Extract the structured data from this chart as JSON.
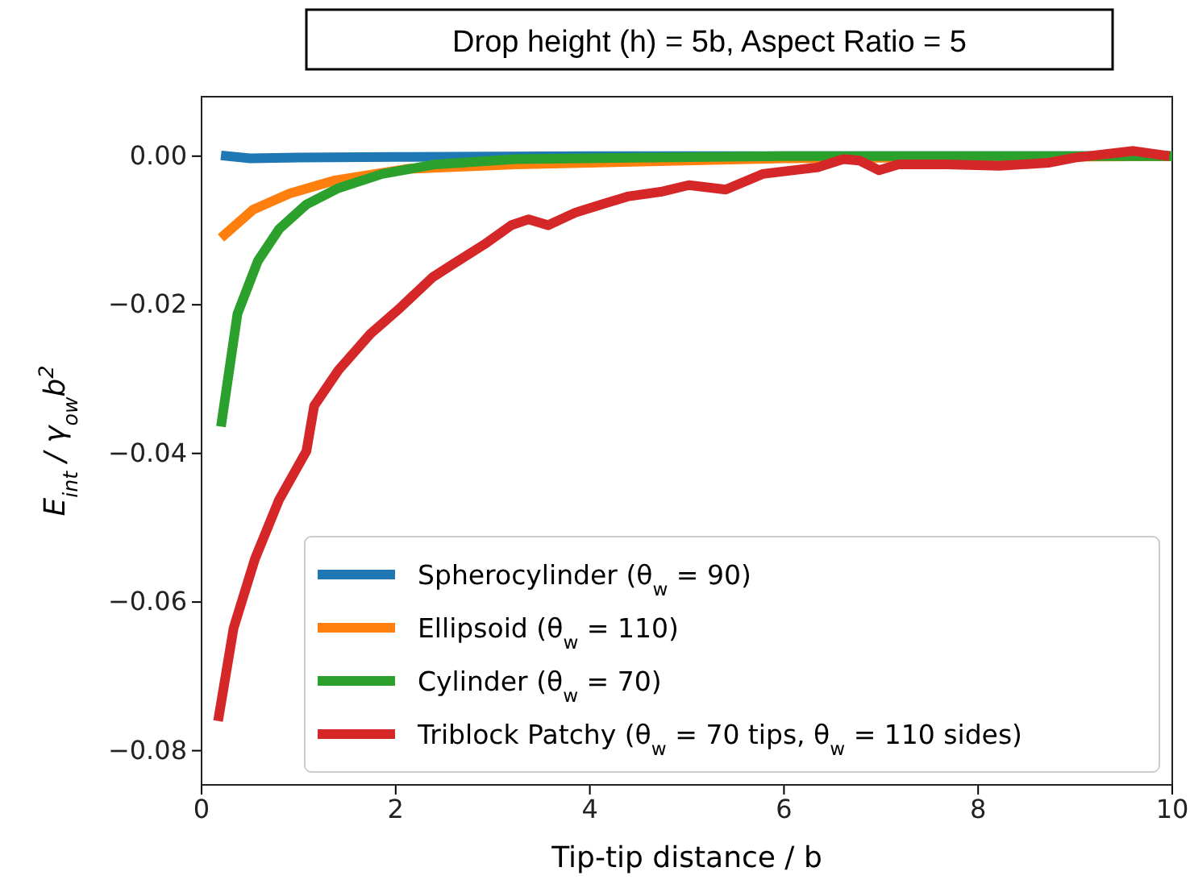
{
  "chart_data": {
    "type": "line",
    "title": "Drop height (h) = 5b, Aspect Ratio = 5",
    "xlabel": "Tip-tip distance / b",
    "ylabel": "E$_{int}$ / γ$_{ow}$b$^{2}$",
    "xlim": [
      0,
      10
    ],
    "ylim": [
      -0.0846,
      0.008
    ],
    "xticks": [
      0,
      2,
      4,
      6,
      8,
      10
    ],
    "yticks": [
      {
        "value": -0.08,
        "label": "−0.08"
      },
      {
        "value": -0.06,
        "label": "−0.06"
      },
      {
        "value": -0.04,
        "label": "−0.04"
      },
      {
        "value": -0.02,
        "label": "−0.02"
      },
      {
        "value": 0,
        "label": "0.00"
      }
    ],
    "grid": false,
    "legend": "bottom right",
    "line_style": "solid",
    "marker": "none",
    "series": [
      {
        "name": "Spherocylinder (θ$_{w}$ = 90)",
        "color": "#1f77b4",
        "x": [
          0.2,
          0.5,
          1,
          2,
          4,
          6,
          8,
          10
        ],
        "values": [
          0.0001,
          -0.0003,
          -0.0002,
          -0.0001,
          0,
          0,
          0,
          0
        ]
      },
      {
        "name": "Ellipsoid (θ$_{w}$ = 110)",
        "color": "#ff7f0e",
        "x": [
          0.2,
          0.53,
          0.91,
          1.36,
          2.13,
          3.24,
          6,
          10
        ],
        "values": [
          -0.011,
          -0.0072,
          -0.005,
          -0.0033,
          -0.0017,
          -0.0011,
          -0.0003,
          0
        ]
      },
      {
        "name": "Cylinder (θ$_{w}$ = 70)",
        "color": "#2ca02c",
        "x": [
          0.2,
          0.37,
          0.58,
          0.8,
          1.08,
          1.41,
          1.86,
          2.41,
          3.24,
          6,
          10
        ],
        "values": [
          -0.0364,
          -0.0212,
          -0.0141,
          -0.0098,
          -0.0065,
          -0.0043,
          -0.0024,
          -0.0011,
          -0.0004,
          0,
          0
        ]
      },
      {
        "name": "Triblock Patchy (θ$_{w}$ = 70 tips, θ$_{w}$ = 110 sides)",
        "color": "#d62728",
        "x": [
          0.17,
          0.33,
          0.55,
          0.8,
          1.08,
          1.16,
          1.41,
          1.74,
          2.03,
          2.38,
          2.57,
          2.91,
          3.19,
          3.37,
          3.57,
          3.85,
          4.12,
          4.4,
          4.73,
          5.02,
          5.4,
          5.78,
          6.35,
          6.61,
          6.78,
          6.98,
          7.18,
          7.67,
          8.22,
          8.72,
          9.0,
          9.6,
          9.97
        ],
        "values": [
          -0.076,
          -0.0635,
          -0.0542,
          -0.0462,
          -0.0397,
          -0.0336,
          -0.0288,
          -0.0239,
          -0.0206,
          -0.0163,
          -0.0147,
          -0.0119,
          -0.0093,
          -0.0085,
          -0.0093,
          -0.0076,
          -0.0065,
          -0.0054,
          -0.0048,
          -0.0039,
          -0.0045,
          -0.0024,
          -0.0015,
          -0.0004,
          -0.0006,
          -0.0019,
          -0.0011,
          -0.0011,
          -0.0013,
          -0.0009,
          -0.0002,
          0.0007,
          0
        ]
      }
    ]
  }
}
